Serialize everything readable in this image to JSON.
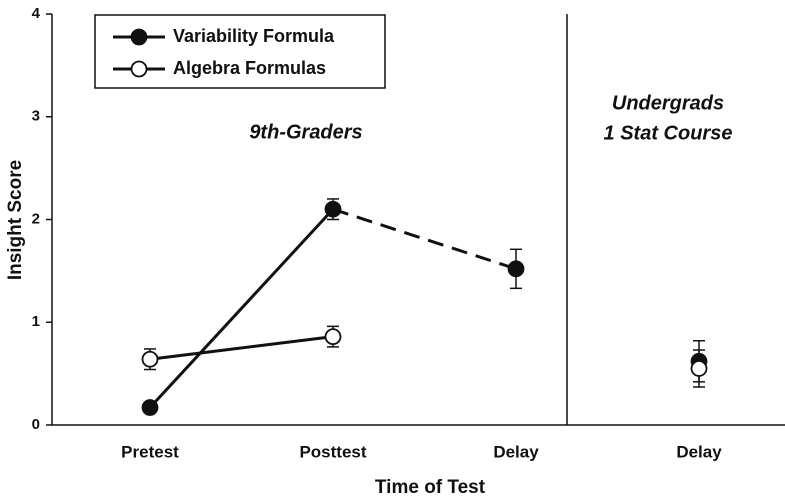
{
  "chart_data": {
    "type": "line",
    "xlabel": "Time of Test",
    "ylabel": "Insight Score",
    "ylim": [
      0,
      4
    ],
    "yticks": [
      0,
      1,
      2,
      3,
      4
    ],
    "categories": [
      "Pretest",
      "Posttest",
      "Delay",
      "Delay"
    ],
    "panels": [
      3,
      1
    ],
    "annotations": [
      "9th-Graders",
      "Undergrads",
      "1 Stat Course"
    ],
    "series": [
      {
        "name": "Variability Formula",
        "color": "#111111",
        "marker_fill": "#111111",
        "values": [
          0.17,
          2.1,
          1.52,
          0.62
        ],
        "errors": [
          0.05,
          0.1,
          0.19,
          0.2
        ],
        "segment_styles": [
          "solid",
          "dashed"
        ]
      },
      {
        "name": "Algebra Formulas",
        "color": "#111111",
        "marker_fill": "#ffffff",
        "values": [
          0.64,
          0.86,
          null,
          0.55
        ],
        "errors": [
          0.1,
          0.1,
          null,
          0.18
        ],
        "segment_styles": [
          "solid",
          "solid"
        ]
      }
    ],
    "legend": "upper left"
  }
}
